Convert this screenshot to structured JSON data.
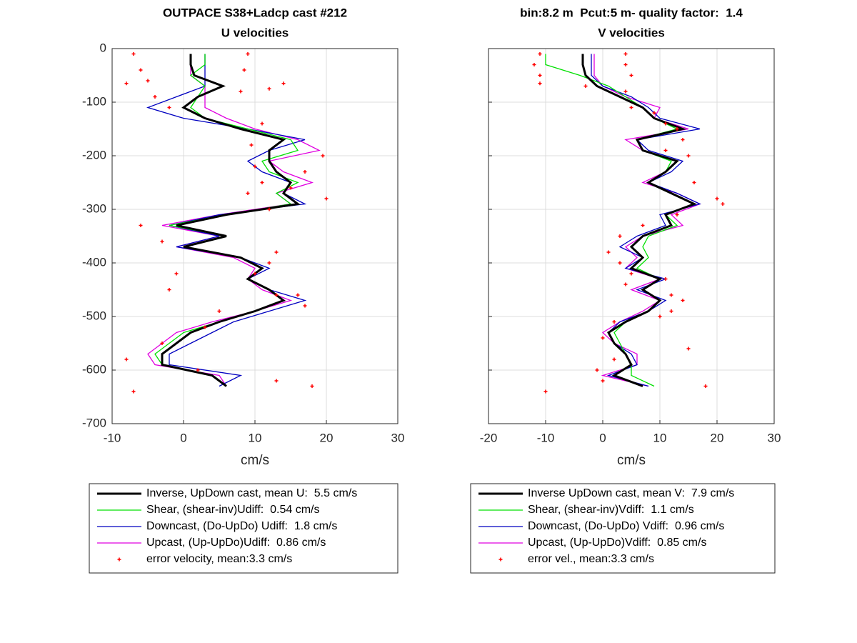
{
  "chart_data": [
    {
      "type": "line",
      "title": "OUTPACE S38+Ladcp cast #212",
      "subtitle": "U velocities",
      "xlabel": "cm/s",
      "xlim": [
        -10,
        30
      ],
      "xticks": [
        -10,
        0,
        10,
        20,
        30
      ],
      "ylim": [
        -700,
        0
      ],
      "yticks": [
        0,
        -100,
        -200,
        -300,
        -400,
        -500,
        -600,
        -700
      ],
      "ytick_labels": true,
      "grid": true,
      "legend": "below",
      "y": [
        -10,
        -30,
        -50,
        -70,
        -90,
        -110,
        -130,
        -150,
        -170,
        -190,
        -210,
        -230,
        -250,
        -270,
        -290,
        -310,
        -330,
        -350,
        -370,
        -390,
        -410,
        -430,
        -450,
        -470,
        -490,
        -510,
        -530,
        -550,
        -570,
        -590,
        -610,
        -630
      ],
      "series": [
        {
          "name": "Inverse, UpDown cast, mean U:  5.5 cm/s",
          "color": "#000000",
          "values": [
            1,
            1,
            1.5,
            5.5,
            2,
            0,
            3,
            8,
            14,
            12,
            12,
            13,
            15,
            14,
            16,
            6,
            -1,
            6,
            0,
            8,
            11,
            9,
            12,
            14,
            10,
            5,
            1,
            -1,
            -3,
            -3,
            4,
            6
          ]
        },
        {
          "name": "Shear, (shear-inv)Udiff:  0.54 cm/s",
          "color": "#00e000",
          "values": [
            3,
            3,
            1,
            3,
            2,
            1,
            3,
            9,
            15,
            16,
            11,
            12,
            16,
            13,
            15,
            6,
            -2,
            6,
            0,
            8,
            11,
            9,
            12,
            14,
            10,
            5,
            0,
            -2,
            -4,
            -3,
            4,
            6
          ]
        },
        {
          "name": "Downcast, (Do-UpDo) Udiff:  1.8 cm/s",
          "color": "#0000c0",
          "values": [
            3,
            3,
            3,
            3,
            -1,
            -5,
            0,
            9,
            17,
            12,
            9,
            11,
            15,
            14,
            17,
            5,
            -2,
            5,
            -1,
            8,
            12,
            9,
            12,
            17,
            12,
            7,
            4,
            1,
            -2,
            -2,
            8,
            5
          ]
        },
        {
          "name": "Upcast, (Up-UpDo)Udiff:  0.86 cm/s",
          "color": "#e000e0",
          "values": [
            1,
            1,
            1,
            3,
            3,
            3,
            6,
            10,
            16,
            19,
            12,
            14,
            18,
            13,
            15,
            5,
            -3,
            5,
            -1,
            7,
            10,
            9,
            11,
            15,
            10,
            4,
            -1,
            -3,
            -5,
            -4,
            5,
            6
          ]
        }
      ],
      "errors": {
        "name": "error velocity, mean:3.3 cm/s",
        "color": "#ff0000",
        "x": [
          -7,
          -6,
          -5,
          -8,
          -4,
          -2,
          9,
          8.5,
          8,
          12,
          14,
          9.5,
          10,
          11,
          9,
          12,
          19.5,
          17,
          15,
          20,
          11,
          -6,
          -3,
          13,
          12,
          -1,
          16,
          -2,
          5,
          17,
          -8,
          2,
          13,
          -7,
          18,
          -3,
          3,
          13,
          10
        ],
        "y": [
          -10,
          -40,
          -60,
          -65,
          -90,
          -110,
          -10,
          -40,
          -80,
          -75,
          -65,
          -180,
          -220,
          -250,
          -270,
          -300,
          -200,
          -230,
          -260,
          -280,
          -140,
          -330,
          -360,
          -380,
          -400,
          -420,
          -460,
          -450,
          -490,
          -480,
          -580,
          -600,
          -620,
          -640,
          -630,
          -550,
          -520,
          -460,
          -420
        ]
      }
    },
    {
      "type": "line",
      "title": "bin:8.2 m  Pcut:5 m- quality factor:  1.4",
      "subtitle": "V velocities",
      "xlabel": "cm/s",
      "xlim": [
        -20,
        30
      ],
      "xticks": [
        -20,
        -10,
        0,
        10,
        20,
        30
      ],
      "ylim": [
        -700,
        0
      ],
      "yticks": [
        0,
        -100,
        -200,
        -300,
        -400,
        -500,
        -600,
        -700
      ],
      "ytick_labels": false,
      "grid": true,
      "legend": "below",
      "y": [
        -10,
        -30,
        -50,
        -70,
        -90,
        -110,
        -130,
        -150,
        -170,
        -190,
        -210,
        -230,
        -250,
        -270,
        -290,
        -310,
        -330,
        -350,
        -370,
        -390,
        -410,
        -430,
        -450,
        -470,
        -490,
        -510,
        -530,
        -550,
        -570,
        -590,
        -610,
        -630
      ],
      "series": [
        {
          "name": "Inverse UpDown cast, mean V:  7.9 cm/s",
          "color": "#000000",
          "values": [
            -3.5,
            -3.5,
            -3,
            -1,
            3,
            7,
            9,
            14,
            6,
            7,
            13,
            11,
            8,
            12,
            16,
            11,
            12,
            7,
            5,
            7,
            5,
            10,
            7,
            10,
            8,
            4,
            1,
            2,
            4,
            5,
            2,
            7
          ]
        },
        {
          "name": "Shear, (shear-inv)Vdiff:  1.1 cm/s",
          "color": "#00e000",
          "values": [
            -10,
            -10,
            -4,
            1,
            4,
            7,
            9,
            13,
            6,
            7,
            12,
            11,
            8,
            12,
            16,
            11,
            13,
            8,
            7,
            8,
            6,
            10,
            7,
            10,
            8,
            4,
            2,
            3,
            4,
            5,
            5,
            9
          ]
        },
        {
          "name": "Downcast, (Do-UpDo) Vdiff:  0.96 cm/s",
          "color": "#0000c0",
          "values": [
            -2,
            -2,
            -2,
            0,
            5,
            8,
            10,
            17,
            6,
            8,
            14,
            12,
            8,
            13,
            17,
            10,
            11,
            6,
            3,
            7,
            4,
            11,
            6,
            11,
            8,
            3,
            1,
            2,
            5,
            6,
            1,
            8
          ]
        },
        {
          "name": "Upcast, (Up-UpDo)Vdiff:  0.85 cm/s",
          "color": "#e000e0",
          "values": [
            -1.5,
            -1.5,
            -1.5,
            0,
            4,
            10,
            9,
            15,
            4,
            7,
            13,
            11,
            7,
            13,
            17,
            12,
            14,
            7,
            4,
            6,
            4,
            10,
            5,
            10,
            7,
            3,
            0,
            2,
            6,
            6,
            0,
            8
          ]
        }
      ],
      "errors": {
        "name": "error vel., mean:3.3 cm/s",
        "color": "#ff0000",
        "x": [
          -11,
          -12,
          -11,
          -11,
          -3,
          4,
          4,
          5,
          4,
          5,
          9,
          11,
          13,
          14,
          11,
          15,
          16,
          20,
          21,
          3,
          1,
          3,
          5,
          4,
          11,
          12,
          14,
          12,
          2,
          0,
          2,
          -1,
          0,
          10,
          15,
          18,
          -10,
          13,
          7
        ],
        "y": [
          -10,
          -30,
          -50,
          -65,
          -70,
          -10,
          -30,
          -50,
          -80,
          -110,
          -120,
          -140,
          -150,
          -170,
          -190,
          -200,
          -250,
          -280,
          -290,
          -350,
          -380,
          -400,
          -420,
          -440,
          -430,
          -460,
          -470,
          -490,
          -510,
          -540,
          -580,
          -600,
          -620,
          -500,
          -560,
          -630,
          -640,
          -310,
          -330
        ]
      }
    }
  ]
}
